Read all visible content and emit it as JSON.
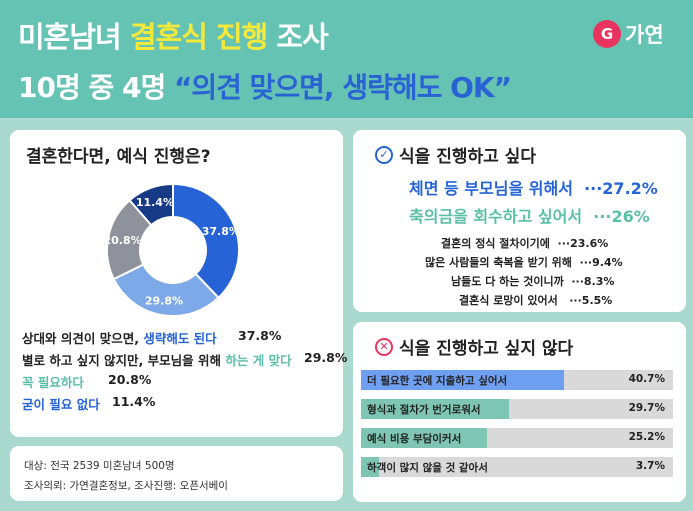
{
  "header": {
    "title1_a": "미혼남녀 ",
    "title1_hl": "결혼식 진행",
    "title1_b": " 조사",
    "title2_a": "10명 중 4명 ",
    "title2_hl": "“의견 맞으면, 생략해도 OK”",
    "logo_mark": "G",
    "logo_text": "가연"
  },
  "left": {
    "title": "결혼한다면, 예식 진행은?",
    "chart_data": {
      "type": "pie",
      "categories": [
        "상대와 의견이 맞으면, 생략해도 된다",
        "별로 하고 싶지 않지만, 부모님을 위해 하는 게 맞다",
        "꼭 필요하다",
        "굳이 필요 없다"
      ],
      "values": [
        37.8,
        29.8,
        20.8,
        11.4
      ],
      "labels": [
        "37.8%",
        "29.8%",
        "20.8%",
        "11.4%"
      ],
      "colors": [
        "#2563d6",
        "#7ea9e8",
        "#8f929a",
        "#173a87"
      ]
    },
    "legend": [
      {
        "pre": "상대와 의견이 맞으면, ",
        "hl": "생략해도 된다",
        "post": "",
        "pct": "37.8%"
      },
      {
        "pre": "별로 하고 싶지 않지만, 부모님을 위해 ",
        "hl": "하는 게 맞다",
        "post": "",
        "pct": "29.8%"
      },
      {
        "pre": "",
        "hl": "꼭 필요하다",
        "post": "",
        "pct": "20.8%"
      },
      {
        "pre": "",
        "hl": "굳이 필요 없다",
        "post": "",
        "pct": "11.4%"
      }
    ]
  },
  "source": {
    "line1": "대상: 전국 2539 미혼남녀 500명",
    "line2": "조사의뢰: 가연결혼정보, 조사진행: 오픈서베이"
  },
  "want": {
    "title": "식을 진행하고 싶다",
    "items": [
      {
        "label": "체면 등 부모님을 위해서",
        "dots": "···",
        "pct": "27.2%"
      },
      {
        "label": "축의금을 회수하고 싶어서",
        "dots": "···",
        "pct": "26%"
      },
      {
        "label": "결혼의 정식 절차이기에",
        "dots": "···",
        "pct": "23.6%"
      },
      {
        "label": "많은 사람들의 축복을 받기 위해",
        "dots": "···",
        "pct": "9.4%"
      },
      {
        "label": "남들도 다 하는 것이니까",
        "dots": "···",
        "pct": "8.3%"
      },
      {
        "label": "결혼식 로망이 있어서",
        "dots": "···",
        "pct": "5.5%"
      }
    ]
  },
  "not_want": {
    "title": "식을 진행하고 싶지 않다",
    "chart_data": {
      "type": "bar",
      "categories": [
        "더 필요한 곳에 지출하고 싶어서",
        "형식과 절차가 번거로워서",
        "예식 비용 부담이커서",
        "하객이 많지 않을 것 같아서"
      ],
      "values": [
        40.7,
        29.7,
        25.2,
        3.7
      ],
      "labels": [
        "40.7%",
        "29.7%",
        "25.2%",
        "3.7%"
      ],
      "colors": [
        "#6e9ff0",
        "#7ec6b3",
        "#7ec6b3",
        "#7ec6b3"
      ]
    }
  }
}
